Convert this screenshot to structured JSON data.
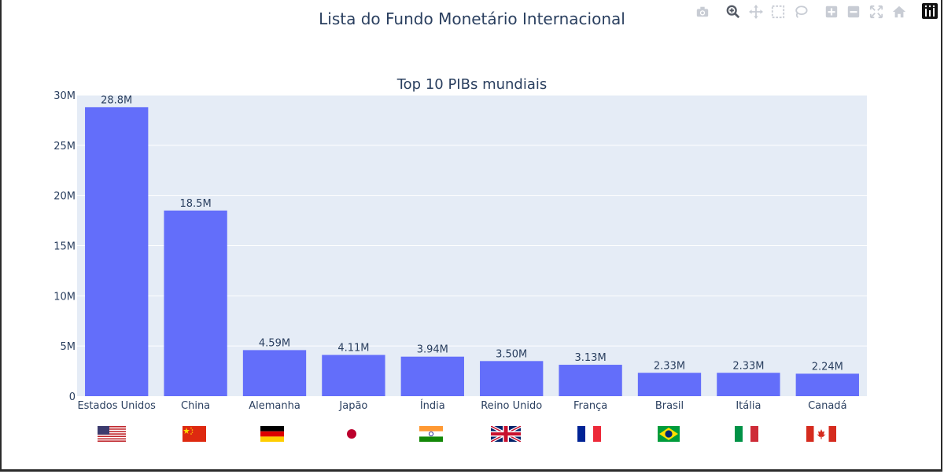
{
  "page": {
    "title": "Lista do Fundo Monetário Internacional"
  },
  "modebar": {
    "buttons": [
      {
        "name": "camera-icon"
      },
      {
        "name": "zoom-icon"
      },
      {
        "name": "pan-icon"
      },
      {
        "name": "box-select-icon"
      },
      {
        "name": "lasso-select-icon"
      },
      {
        "name": "zoom-in-icon"
      },
      {
        "name": "zoom-out-icon"
      },
      {
        "name": "autoscale-icon"
      },
      {
        "name": "reset-axes-icon"
      }
    ],
    "logo": "plotly-logo-icon"
  },
  "chart_data": {
    "type": "bar",
    "title": "Top 10 PIBs mundiais",
    "xlabel": "",
    "ylabel": "",
    "categories": [
      "Estados Unidos",
      "China",
      "Alemanha",
      "Japão",
      "Índia",
      "Reino Unido",
      "França",
      "Brasil",
      "Itália",
      "Canadá"
    ],
    "values": [
      28.8,
      18.5,
      4.59,
      4.11,
      3.94,
      3.5,
      3.13,
      2.33,
      2.33,
      2.24
    ],
    "data_labels": [
      "28.8M",
      "18.5M",
      "4.59M",
      "4.11M",
      "3.94M",
      "3.50M",
      "3.13M",
      "2.33M",
      "2.33M",
      "2.24M"
    ],
    "yticks": [
      0,
      5,
      10,
      15,
      20,
      25,
      30
    ],
    "ytick_labels": [
      "0",
      "5M",
      "10M",
      "15M",
      "20M",
      "25M",
      "30M"
    ],
    "ylim": [
      0,
      30
    ],
    "grid": true,
    "bar_color": "#636efa",
    "plot_bg": "#e5ecf6",
    "font_color": "#2a3f5f",
    "flags": [
      "usa-flag-icon",
      "china-flag-icon",
      "germany-flag-icon",
      "japan-flag-icon",
      "india-flag-icon",
      "uk-flag-icon",
      "france-flag-icon",
      "brazil-flag-icon",
      "italy-flag-icon",
      "canada-flag-icon"
    ]
  }
}
